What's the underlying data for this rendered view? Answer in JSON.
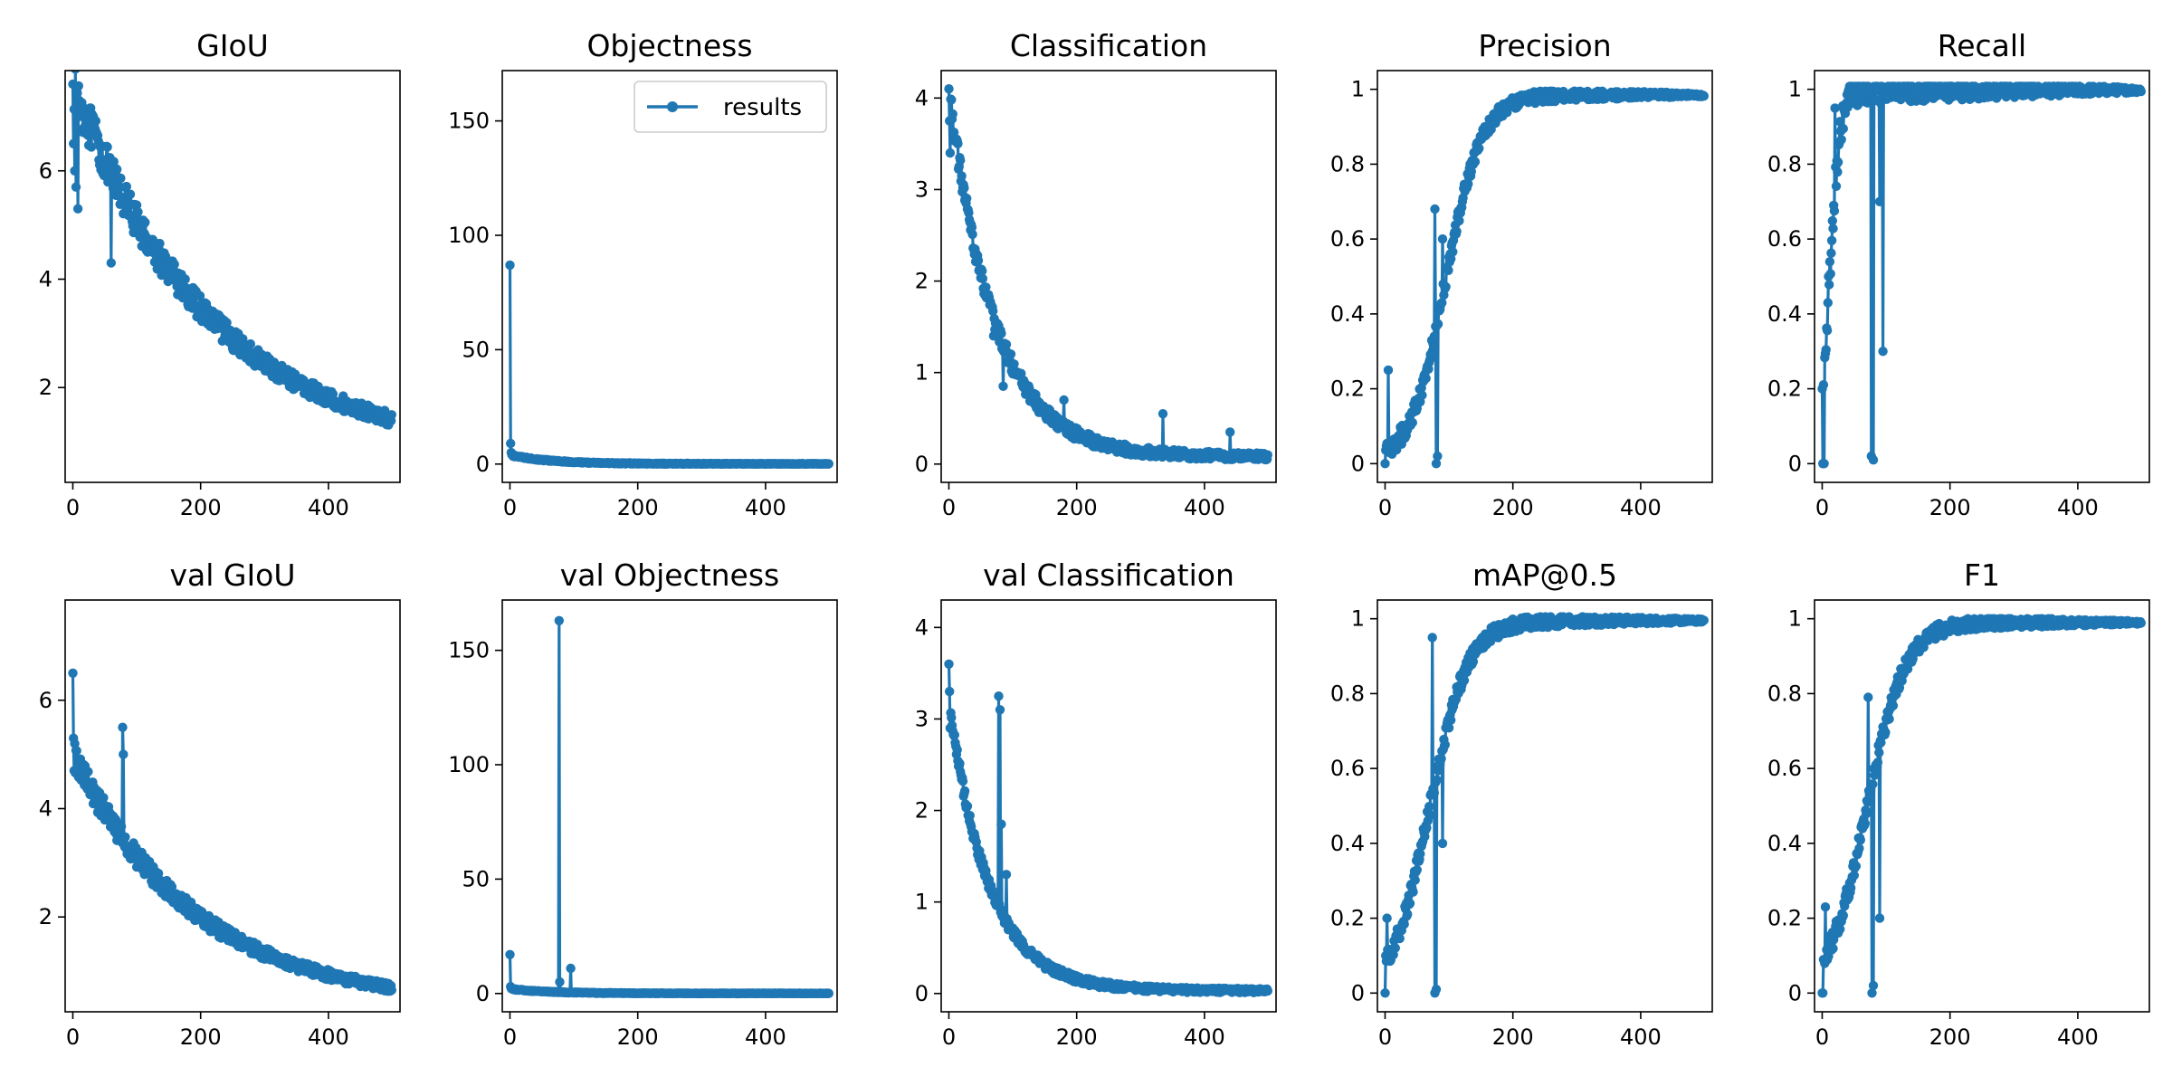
{
  "line_color": "#1f77b4",
  "legend": {
    "entries": [
      "results"
    ],
    "location": "upper right",
    "panel": "objectness"
  },
  "chart_data": [
    {
      "id": "giou",
      "type": "line",
      "title": "GIoU",
      "xlim": [
        -12,
        512
      ],
      "ylim": [
        0.25,
        7.85
      ],
      "xticks": [
        0,
        200,
        400
      ],
      "yticks": [
        2,
        4,
        6
      ],
      "series": [
        {
          "name": "results",
          "generator": "decay",
          "start": 7.6,
          "end": 0.72,
          "rate": 2.3,
          "noise": 0.35,
          "spikes": [
            [
              0,
              7.6
            ],
            [
              1,
              6.5
            ],
            [
              3,
              6.0
            ],
            [
              5,
              5.7
            ],
            [
              8,
              5.3
            ],
            [
              60,
              4.3
            ]
          ]
        }
      ]
    },
    {
      "id": "objectness",
      "type": "line",
      "title": "Objectness",
      "xlim": [
        -12,
        512
      ],
      "ylim": [
        -8,
        172
      ],
      "xticks": [
        0,
        200,
        400
      ],
      "yticks": [
        0,
        50,
        100,
        150
      ],
      "series": [
        {
          "name": "results",
          "generator": "decay",
          "start": 4.0,
          "end": 0.1,
          "rate": 8,
          "noise": 0.3,
          "spikes": [
            [
              0,
              87
            ],
            [
              1,
              9
            ],
            [
              2,
              5
            ]
          ]
        }
      ]
    },
    {
      "id": "classification",
      "type": "line",
      "title": "Classification",
      "xlim": [
        -12,
        512
      ],
      "ylim": [
        -0.2,
        4.3
      ],
      "xticks": [
        0,
        200,
        400
      ],
      "yticks": [
        0,
        1,
        2,
        3,
        4
      ],
      "series": [
        {
          "name": "results",
          "generator": "decay",
          "start": 4.1,
          "end": 0.08,
          "rate": 7,
          "noise": 0.1,
          "spikes": [
            [
              0,
              4.1
            ],
            [
              1,
              3.75
            ],
            [
              2,
              3.4
            ],
            [
              70,
              1.4
            ],
            [
              85,
              0.85
            ],
            [
              180,
              0.7
            ],
            [
              335,
              0.55
            ],
            [
              440,
              0.35
            ]
          ]
        }
      ]
    },
    {
      "id": "precision",
      "type": "line",
      "title": "Precision",
      "xlim": [
        -12,
        512
      ],
      "ylim": [
        -0.05,
        1.05
      ],
      "xticks": [
        0,
        200,
        400
      ],
      "yticks": [
        0,
        0.2,
        0.4,
        0.6,
        0.8,
        1.0
      ],
      "series": [
        {
          "name": "results",
          "generator": "rise",
          "start": 0.0,
          "end": 0.985,
          "mid": 95,
          "width": 28,
          "noise": 0.04,
          "spikes": [
            [
              0,
              0
            ],
            [
              5,
              0.25
            ],
            [
              78,
              0.68
            ],
            [
              80,
              0.0
            ],
            [
              82,
              0.02
            ],
            [
              90,
              0.6
            ]
          ]
        }
      ]
    },
    {
      "id": "recall",
      "type": "line",
      "title": "Recall",
      "xlim": [
        -12,
        512
      ],
      "ylim": [
        -0.05,
        1.05
      ],
      "xticks": [
        0,
        200,
        400
      ],
      "yticks": [
        0,
        0.2,
        0.4,
        0.6,
        0.8,
        1.0
      ],
      "series": [
        {
          "name": "results",
          "generator": "rise",
          "start": 0.0,
          "end": 0.998,
          "mid": 12,
          "width": 8,
          "noise": 0.06,
          "spikes": [
            [
              0,
              0.2
            ],
            [
              1,
              0.0
            ],
            [
              3,
              0.0
            ],
            [
              10,
              0.5
            ],
            [
              20,
              0.95
            ],
            [
              77,
              0.02
            ],
            [
              80,
              0.01
            ],
            [
              90,
              0.7
            ],
            [
              95,
              0.3
            ]
          ]
        }
      ]
    },
    {
      "id": "val_giou",
      "type": "line",
      "title": "val GIoU",
      "xlim": [
        -12,
        512
      ],
      "ylim": [
        0.25,
        7.85
      ],
      "xticks": [
        0,
        200,
        400
      ],
      "yticks": [
        2,
        4,
        6
      ],
      "series": [
        {
          "name": "results",
          "generator": "decay",
          "start": 5.0,
          "end": 0.35,
          "rate": 2.6,
          "noise": 0.22,
          "spikes": [
            [
              0,
              6.5
            ],
            [
              1,
              5.3
            ],
            [
              2,
              4.7
            ],
            [
              78,
              5.5
            ],
            [
              79,
              5.0
            ]
          ]
        }
      ]
    },
    {
      "id": "val_objectness",
      "type": "line",
      "title": "val Objectness",
      "xlim": [
        -12,
        512
      ],
      "ylim": [
        -8,
        172
      ],
      "xticks": [
        0,
        200,
        400
      ],
      "yticks": [
        0,
        50,
        100,
        150
      ],
      "series": [
        {
          "name": "results",
          "generator": "decay",
          "start": 2.0,
          "end": 0.05,
          "rate": 8,
          "noise": 0.2,
          "spikes": [
            [
              0,
              17
            ],
            [
              1,
              3
            ],
            [
              77,
              163
            ],
            [
              78,
              5
            ],
            [
              95,
              11
            ]
          ]
        }
      ]
    },
    {
      "id": "val_classification",
      "type": "line",
      "title": "val Classification",
      "xlim": [
        -12,
        512
      ],
      "ylim": [
        -0.2,
        4.3
      ],
      "xticks": [
        0,
        200,
        400
      ],
      "yticks": [
        0,
        1,
        2,
        3,
        4
      ],
      "series": [
        {
          "name": "results",
          "generator": "decay",
          "start": 3.2,
          "end": 0.03,
          "rate": 8,
          "noise": 0.06,
          "spikes": [
            [
              0,
              3.6
            ],
            [
              1,
              3.3
            ],
            [
              2,
              2.9
            ],
            [
              78,
              3.25
            ],
            [
              80,
              3.1
            ],
            [
              82,
              1.85
            ],
            [
              90,
              1.3
            ],
            [
              250,
              0.12
            ]
          ]
        }
      ]
    },
    {
      "id": "map05",
      "type": "line",
      "title": "mAP@0.5",
      "xlim": [
        -12,
        512
      ],
      "ylim": [
        -0.05,
        1.05
      ],
      "xticks": [
        0,
        200,
        400
      ],
      "yticks": [
        0,
        0.2,
        0.4,
        0.6,
        0.8,
        1.0
      ],
      "series": [
        {
          "name": "results",
          "generator": "rise",
          "start": 0.0,
          "end": 0.995,
          "mid": 70,
          "width": 30,
          "noise": 0.04,
          "spikes": [
            [
              0,
              0.0
            ],
            [
              1,
              0.1
            ],
            [
              3,
              0.2
            ],
            [
              74,
              0.95
            ],
            [
              78,
              0.0
            ],
            [
              80,
              0.01
            ],
            [
              90,
              0.4
            ]
          ]
        }
      ]
    },
    {
      "id": "f1",
      "type": "line",
      "title": "F1",
      "xlim": [
        -12,
        512
      ],
      "ylim": [
        -0.05,
        1.05
      ],
      "xticks": [
        0,
        200,
        400
      ],
      "yticks": [
        0,
        0.2,
        0.4,
        0.6,
        0.8,
        1.0
      ],
      "series": [
        {
          "name": "results",
          "generator": "rise",
          "start": 0.0,
          "end": 0.99,
          "mid": 70,
          "width": 30,
          "noise": 0.04,
          "spikes": [
            [
              0,
              0.0
            ],
            [
              1,
              0.0
            ],
            [
              5,
              0.23
            ],
            [
              72,
              0.79
            ],
            [
              78,
              0.0
            ],
            [
              80,
              0.02
            ],
            [
              85,
              0.6
            ],
            [
              90,
              0.2
            ]
          ]
        }
      ]
    }
  ]
}
